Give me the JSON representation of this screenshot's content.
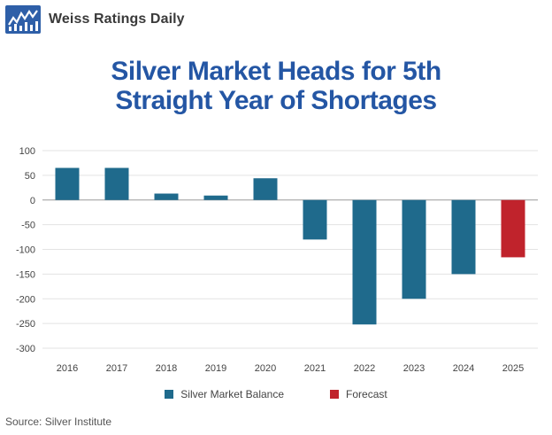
{
  "header": {
    "brand_name": "Weiss Ratings Daily",
    "logo_icon": "weiss-bar-chart-logo-icon",
    "logo_color": "#2e5fa8"
  },
  "chart_data": {
    "type": "bar",
    "title_lines": [
      "Silver Market Heads for 5th",
      "Straight Year of Shortages"
    ],
    "xlabel": "",
    "ylabel": "",
    "categories": [
      "2016",
      "2017",
      "2018",
      "2019",
      "2020",
      "2021",
      "2022",
      "2023",
      "2024",
      "2025"
    ],
    "series": [
      {
        "name": "Silver Market Balance",
        "color": "#1f6a8c",
        "values": [
          65,
          65,
          13,
          9,
          44,
          -80,
          -252,
          -200,
          -150,
          null
        ]
      },
      {
        "name": "Forecast",
        "color": "#c0232c",
        "values": [
          null,
          null,
          null,
          null,
          null,
          null,
          null,
          null,
          null,
          -116
        ]
      }
    ],
    "ylim": [
      -300,
      100
    ],
    "yticks": [
      100,
      50,
      0,
      -50,
      -100,
      -150,
      -200,
      -250,
      -300
    ],
    "grid": true,
    "legend_position": "bottom"
  },
  "footer": {
    "source": "Source: Silver Institute"
  }
}
